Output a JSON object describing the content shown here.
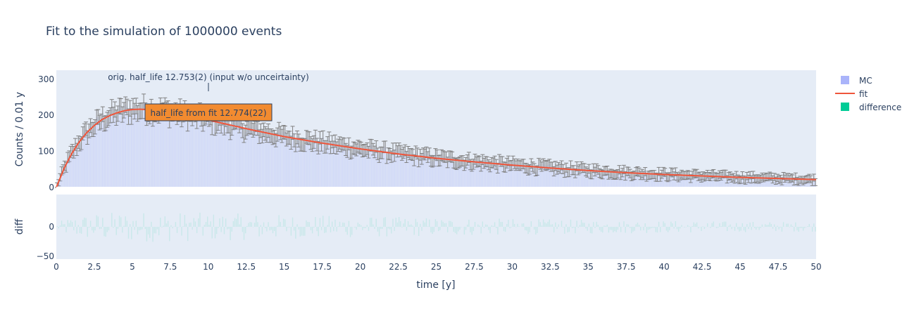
{
  "chart_data": [
    {
      "type": "bar+line",
      "title": "Fit to the simulation of 1000000 events",
      "xlabel": "time [y]",
      "ylabel": "Counts / 0.01 y",
      "xlim": [
        0,
        50
      ],
      "ylim": [
        0,
        325
      ],
      "x_ticks": [
        "0",
        "2.5",
        "5",
        "7.5",
        "10",
        "12.5",
        "15",
        "17.5",
        "20",
        "22.5",
        "25",
        "27.5",
        "30",
        "32.5",
        "35",
        "37.5",
        "40",
        "42.5",
        "45",
        "47.5",
        "50"
      ],
      "y_ticks": [
        "0",
        "100",
        "200",
        "300"
      ],
      "grid": false,
      "legend_position": "top-right",
      "series": [
        {
          "name": "MC",
          "kind": "bar",
          "color": "#aab4fa",
          "error_color": "#808080",
          "x": [
            0,
            0.5,
            1,
            1.5,
            2,
            2.5,
            3,
            3.5,
            4,
            4.5,
            5,
            5.5,
            6,
            7,
            8,
            9,
            10,
            12.5,
            15,
            17.5,
            20,
            22.5,
            25,
            27.5,
            30,
            32.5,
            35,
            37.5,
            40,
            42.5,
            45,
            47.5,
            50
          ],
          "y": [
            0,
            52,
            93,
            126,
            152,
            172,
            188,
            199,
            207,
            213,
            216,
            217,
            216,
            212,
            205,
            196,
            187,
            163,
            141,
            123,
            107,
            93,
            81,
            71,
            62,
            54,
            47,
            41,
            36,
            32,
            28,
            25,
            22
          ]
        },
        {
          "name": "fit",
          "kind": "line",
          "color": "#ef553b",
          "x": [
            0,
            0.5,
            1,
            1.5,
            2,
            2.5,
            3,
            3.5,
            4,
            4.5,
            5,
            5.5,
            6,
            7,
            8,
            9,
            10,
            12.5,
            15,
            17.5,
            20,
            22.5,
            25,
            27.5,
            30,
            32.5,
            35,
            37.5,
            40,
            42.5,
            45,
            47.5,
            50
          ],
          "y": [
            0,
            52,
            93,
            126,
            152,
            172,
            188,
            199,
            207,
            213,
            216,
            217,
            216,
            212,
            205,
            196,
            187,
            163,
            141,
            123,
            107,
            93,
            81,
            71,
            62,
            54,
            47,
            41,
            36,
            32,
            28,
            25,
            22
          ]
        }
      ],
      "annotations": [
        {
          "text": "orig. half_life 12.753(2) (input w/o unceirtainty)",
          "x": 10,
          "y": 300
        },
        {
          "text": "half_life from fit 12.774(22)",
          "x": 10,
          "y": 205,
          "bgcolor": "#f28b30"
        }
      ]
    },
    {
      "type": "bar",
      "ylabel": "diff",
      "xlim": [
        0,
        50
      ],
      "ylim": [
        -55,
        55
      ],
      "y_ticks": [
        "−50",
        "0"
      ],
      "series": [
        {
          "name": "difference",
          "kind": "bar",
          "color": "#00cc96",
          "values_note": ""
        }
      ]
    }
  ],
  "legend": [
    {
      "name": "MC",
      "color": "#aab4fa",
      "symbol": "square"
    },
    {
      "name": "fit",
      "color": "#ef553b",
      "symbol": "line"
    },
    {
      "name": "difference",
      "color": "#00cc96",
      "symbol": "square"
    }
  ],
  "colors": {
    "plot_bg": "#e5ecf6",
    "text": "#2a3f5f",
    "error_bar": "#808080",
    "annotation_box": "#f28b30"
  }
}
